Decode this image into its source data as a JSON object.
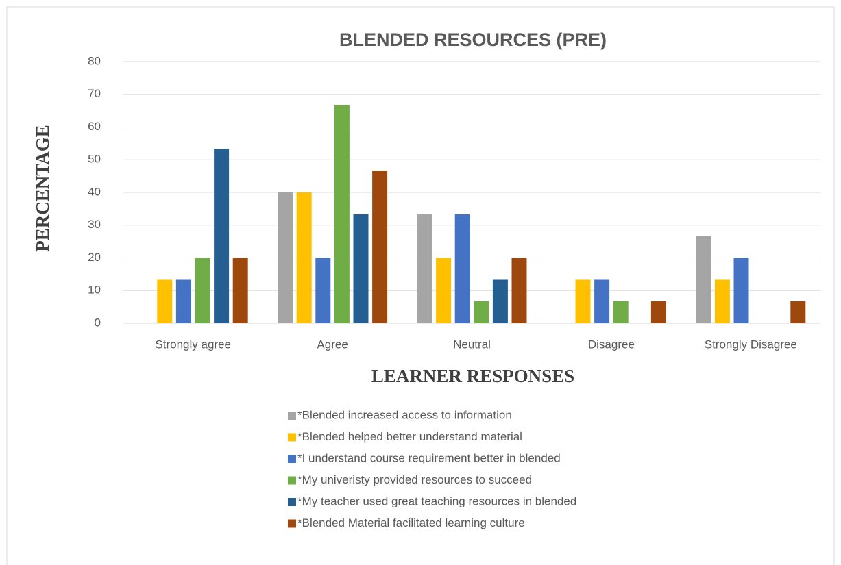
{
  "chart_data": {
    "type": "bar",
    "title": "BLENDED RESOURCES (PRE)",
    "y_label": "PERCENTAGE",
    "x_label": "LEARNER RESPONSES",
    "categories": [
      "Strongly agree",
      "Agree",
      "Neutral",
      "Disagree",
      "Strongly Disagree"
    ],
    "series": [
      {
        "name": "*Blended increased access to information",
        "color": "#a5a5a5",
        "values": [
          0,
          40,
          33.3,
          0,
          26.7
        ]
      },
      {
        "name": "*Blended helped better understand material",
        "color": "#ffc000",
        "values": [
          13.3,
          40,
          20,
          13.3,
          13.3
        ]
      },
      {
        "name": "*I understand course requirement better in blended",
        "color": "#4472c4",
        "values": [
          13.3,
          20,
          33.3,
          13.3,
          20
        ]
      },
      {
        "name": "*My univeristy provided resources to succeed",
        "color": "#70ad47",
        "values": [
          20,
          66.7,
          6.7,
          6.7,
          0
        ]
      },
      {
        "name": "*My teacher used great teaching resources in blended",
        "color": "#255e91",
        "values": [
          53.3,
          33.3,
          13.3,
          0,
          0
        ]
      },
      {
        "name": "*Blended Material facilitated learning culture",
        "color": "#9e480e",
        "values": [
          20,
          46.7,
          20,
          6.7,
          6.7
        ]
      }
    ],
    "ylim": [
      0,
      80
    ],
    "yticks": [
      0,
      10,
      20,
      30,
      40,
      50,
      60,
      70,
      80
    ],
    "grid": true,
    "legend": "bottom"
  }
}
